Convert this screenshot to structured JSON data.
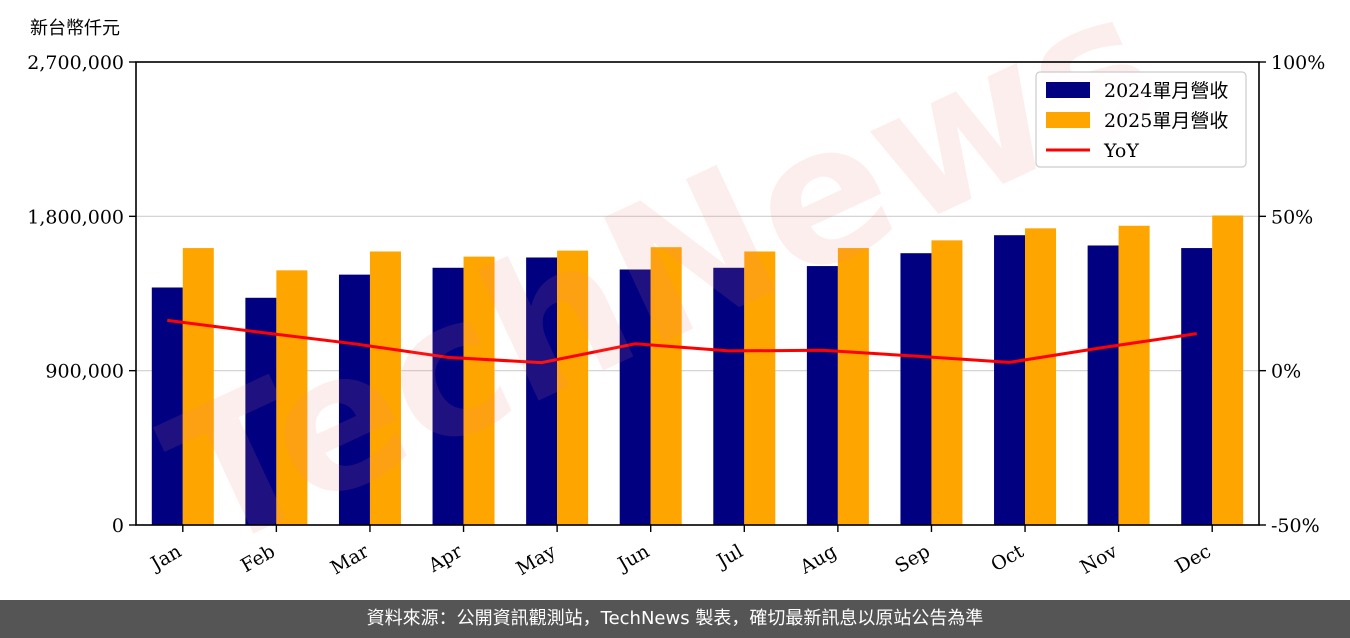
{
  "unit_label": "新台幣仟元",
  "footer_text": "資料來源：公開資訊觀測站，TechNews 製表，確切最新訊息以原站公告為準",
  "watermark_text": "TechNews",
  "colors": {
    "series_2024": "#000080",
    "series_2025": "#FFA500",
    "yoy": "#FF0000",
    "footer_bg": "#555555",
    "watermark": "#F08080"
  },
  "chart_data": {
    "type": "bar",
    "categories": [
      "Jan",
      "Feb",
      "Mar",
      "Apr",
      "May",
      "Jun",
      "Jul",
      "Aug",
      "Sep",
      "Oct",
      "Nov",
      "Dec"
    ],
    "series": [
      {
        "name": "2024單月營收",
        "type": "bar",
        "axis": "left",
        "values": [
          1385000,
          1325000,
          1460000,
          1500000,
          1560000,
          1490000,
          1500000,
          1510000,
          1585000,
          1690000,
          1630000,
          1615000
        ]
      },
      {
        "name": "2025單月營收",
        "type": "bar",
        "axis": "left",
        "values": [
          1615000,
          1485000,
          1595000,
          1565000,
          1600000,
          1620000,
          1595000,
          1615000,
          1660000,
          1730000,
          1745000,
          1805000
        ]
      },
      {
        "name": "YoY",
        "type": "line",
        "axis": "right",
        "values": [
          16.3,
          12.4,
          8.7,
          4.3,
          2.6,
          8.7,
          6.4,
          6.6,
          4.7,
          2.7,
          7.5,
          12.0
        ]
      }
    ],
    "y_left": {
      "ylim": [
        0,
        2700000
      ],
      "ticks": [
        "0",
        "900,000",
        "1,800,000",
        "2,700,000"
      ],
      "tick_values": [
        0,
        900000,
        1800000,
        2700000
      ]
    },
    "y_right": {
      "ylim": [
        -50,
        100
      ],
      "ticks": [
        "-50%",
        "0%",
        "50%",
        "100%"
      ],
      "tick_values": [
        -50,
        0,
        50,
        100
      ]
    },
    "grid": "horizontal",
    "legend": "top-right"
  }
}
